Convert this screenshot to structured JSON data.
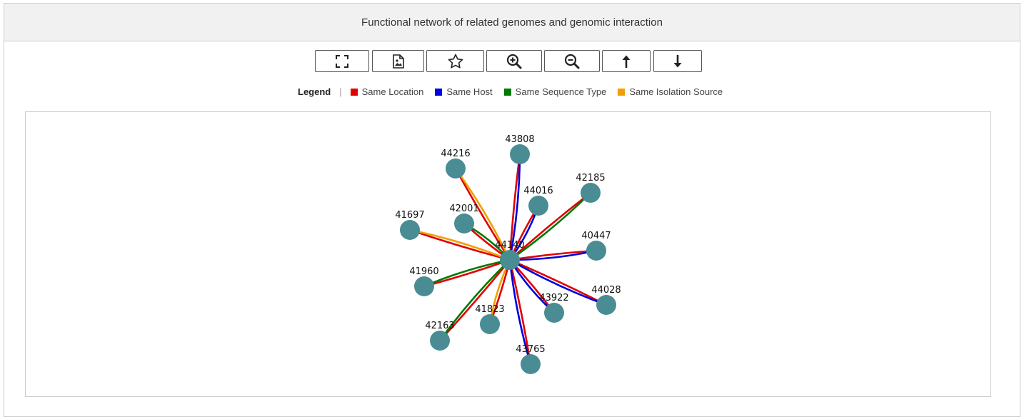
{
  "header": {
    "title": "Functional network of related genomes and genomic interaction"
  },
  "toolbar": {
    "buttons": [
      {
        "name": "fullscreen-button",
        "icon": "fullscreen-icon"
      },
      {
        "name": "export-image-button",
        "icon": "image-file-icon"
      },
      {
        "name": "favorite-button",
        "icon": "star-icon"
      },
      {
        "name": "zoom-in-button",
        "icon": "zoom-in-icon"
      },
      {
        "name": "zoom-out-button",
        "icon": "zoom-out-icon"
      },
      {
        "name": "move-up-button",
        "icon": "arrow-up-icon"
      },
      {
        "name": "move-down-button",
        "icon": "arrow-down-icon"
      }
    ]
  },
  "legend": {
    "title": "Legend",
    "separator": "|",
    "items": [
      {
        "label": "Same Location",
        "color": "#e00000"
      },
      {
        "label": "Same Host",
        "color": "#0000e0"
      },
      {
        "label": "Same Sequence Type",
        "color": "#007a00"
      },
      {
        "label": "Same Isolation Source",
        "color": "#f0a000"
      }
    ]
  },
  "network": {
    "node_color": "#4a8c94",
    "center": "44140",
    "nodes": [
      {
        "id": "44140"
      },
      {
        "id": "43808"
      },
      {
        "id": "44216"
      },
      {
        "id": "44016"
      },
      {
        "id": "42185"
      },
      {
        "id": "42001"
      },
      {
        "id": "41697"
      },
      {
        "id": "40447"
      },
      {
        "id": "41960"
      },
      {
        "id": "44028"
      },
      {
        "id": "43922"
      },
      {
        "id": "41823"
      },
      {
        "id": "42163"
      },
      {
        "id": "43765"
      }
    ],
    "edges": [
      {
        "target": "43808",
        "relations": [
          "Same Location",
          "Same Host"
        ]
      },
      {
        "target": "44216",
        "relations": [
          "Same Location",
          "Same Isolation Source"
        ]
      },
      {
        "target": "44016",
        "relations": [
          "Same Location",
          "Same Host"
        ]
      },
      {
        "target": "42185",
        "relations": [
          "Same Location",
          "Same Sequence Type"
        ]
      },
      {
        "target": "42001",
        "relations": [
          "Same Location",
          "Same Sequence Type"
        ]
      },
      {
        "target": "41697",
        "relations": [
          "Same Location",
          "Same Isolation Source"
        ]
      },
      {
        "target": "40447",
        "relations": [
          "Same Location",
          "Same Host"
        ]
      },
      {
        "target": "41960",
        "relations": [
          "Same Location",
          "Same Sequence Type"
        ]
      },
      {
        "target": "44028",
        "relations": [
          "Same Location",
          "Same Host"
        ]
      },
      {
        "target": "43922",
        "relations": [
          "Same Location",
          "Same Host"
        ]
      },
      {
        "target": "41823",
        "relations": [
          "Same Location",
          "Same Isolation Source"
        ]
      },
      {
        "target": "42163",
        "relations": [
          "Same Location",
          "Same Sequence Type"
        ]
      },
      {
        "target": "43765",
        "relations": [
          "Same Location",
          "Same Host"
        ]
      }
    ]
  }
}
